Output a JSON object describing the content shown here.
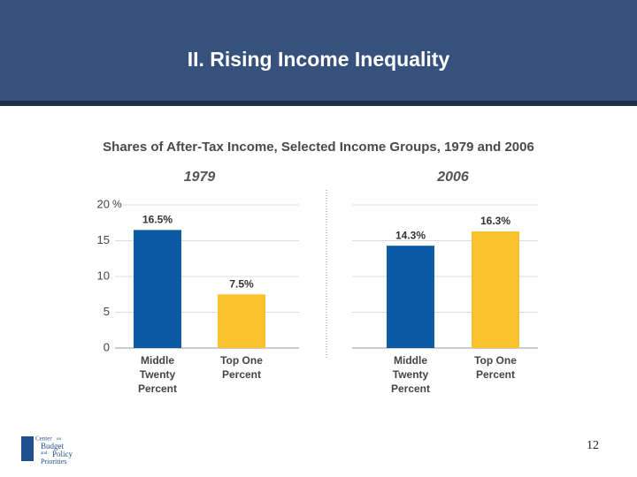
{
  "slide": {
    "title": "II. Rising Income Inequality",
    "page": "12"
  },
  "logo": {
    "lines": [
      "Center",
      "on",
      "Budget",
      "and",
      "Policy",
      "Priorities"
    ]
  },
  "chart_data": {
    "type": "bar",
    "title": "Shares of After-Tax Income, Selected Income Groups, 1979 and 2006",
    "y_unit": "%",
    "categories": [
      [
        "Middle",
        "Twenty",
        "Percent"
      ],
      [
        "Top One",
        "Percent"
      ]
    ],
    "colors": [
      "#0b5aa6",
      "#fcc22d"
    ],
    "ylim": [
      0,
      20
    ],
    "yticks": [
      0,
      5,
      10,
      15,
      20
    ],
    "grid": true,
    "panels": [
      {
        "title": "1979",
        "values": [
          16.5,
          7.5
        ],
        "value_labels": [
          "16.5%",
          "7.5%"
        ]
      },
      {
        "title": "2006",
        "values": [
          14.3,
          16.3
        ],
        "value_labels": [
          "14.3%",
          "16.3%"
        ]
      }
    ]
  }
}
